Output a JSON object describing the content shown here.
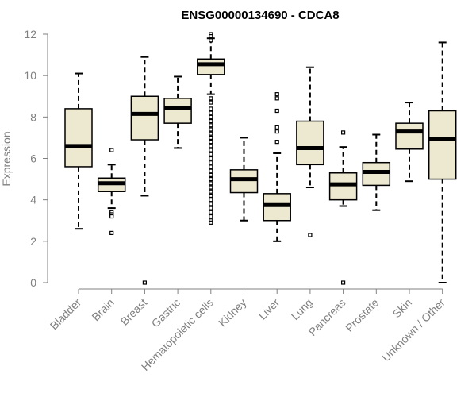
{
  "chart_data": {
    "type": "boxplot",
    "title": "ENSG00000134690 - CDCA8",
    "xlabel": "",
    "ylabel": "Expression",
    "ylim": [
      0,
      12
    ],
    "yticks": [
      0,
      2,
      4,
      6,
      8,
      10,
      12
    ],
    "colors": {
      "box_fill": "#ede8d0",
      "box_stroke": "#000000",
      "median": "#000000",
      "axis": "#808080",
      "outlier": "#000000"
    },
    "categories": [
      "Bladder",
      "Brain",
      "Breast",
      "Gastric",
      "Hematopoietic cells",
      "Kidney",
      "Liver",
      "Lung",
      "Pancreas",
      "Prostate",
      "Skin",
      "Unknown / Other"
    ],
    "boxes": [
      {
        "category": "Bladder",
        "whisker_low": 2.6,
        "q1": 5.6,
        "median": 6.6,
        "q3": 8.4,
        "whisker_high": 10.1,
        "outliers": []
      },
      {
        "category": "Brain",
        "whisker_low": 3.6,
        "q1": 4.4,
        "median": 4.8,
        "q3": 5.05,
        "whisker_high": 5.7,
        "outliers": [
          6.4,
          3.4,
          3.3,
          3.2,
          2.4
        ]
      },
      {
        "category": "Breast",
        "whisker_low": 4.2,
        "q1": 6.9,
        "median": 8.15,
        "q3": 9.0,
        "whisker_high": 10.9,
        "outliers": [
          0.0
        ]
      },
      {
        "category": "Gastric",
        "whisker_low": 6.5,
        "q1": 7.7,
        "median": 8.45,
        "q3": 8.9,
        "whisker_high": 9.95,
        "outliers": []
      },
      {
        "category": "Hematopoietic cells",
        "whisker_low": 9.1,
        "q1": 10.05,
        "median": 10.55,
        "q3": 10.8,
        "whisker_high": 11.8,
        "outliers": [
          12.0,
          11.9,
          11.7,
          8.9,
          8.7,
          8.4,
          8.2,
          8.0,
          7.8,
          7.6,
          7.4,
          7.2,
          7.0,
          6.8,
          6.6,
          6.4,
          6.2,
          6.0,
          5.8,
          5.6,
          5.4,
          5.2,
          5.0,
          4.8,
          4.6,
          4.4,
          4.2,
          4.0,
          3.8,
          3.6,
          3.4,
          3.2,
          3.0,
          2.9
        ]
      },
      {
        "category": "Kidney",
        "whisker_low": 3.0,
        "q1": 4.35,
        "median": 5.0,
        "q3": 5.45,
        "whisker_high": 7.0,
        "outliers": []
      },
      {
        "category": "Liver",
        "whisker_low": 2.0,
        "q1": 3.0,
        "median": 3.75,
        "q3": 4.3,
        "whisker_high": 6.25,
        "outliers": [
          9.1,
          8.9,
          8.3,
          7.5,
          7.3,
          6.8
        ]
      },
      {
        "category": "Lung",
        "whisker_low": 4.6,
        "q1": 5.7,
        "median": 6.5,
        "q3": 7.8,
        "whisker_high": 10.4,
        "outliers": [
          2.3
        ]
      },
      {
        "category": "Pancreas",
        "whisker_low": 3.7,
        "q1": 4.0,
        "median": 4.75,
        "q3": 5.3,
        "whisker_high": 6.55,
        "outliers": [
          7.25,
          0.0
        ]
      },
      {
        "category": "Prostate",
        "whisker_low": 3.5,
        "q1": 4.7,
        "median": 5.35,
        "q3": 5.8,
        "whisker_high": 7.15,
        "outliers": []
      },
      {
        "category": "Skin",
        "whisker_low": 4.9,
        "q1": 6.45,
        "median": 7.3,
        "q3": 7.7,
        "whisker_high": 8.7,
        "outliers": []
      },
      {
        "category": "Unknown / Other",
        "whisker_low": 0.0,
        "q1": 5.0,
        "median": 6.95,
        "q3": 8.3,
        "whisker_high": 11.6,
        "outliers": []
      }
    ]
  }
}
